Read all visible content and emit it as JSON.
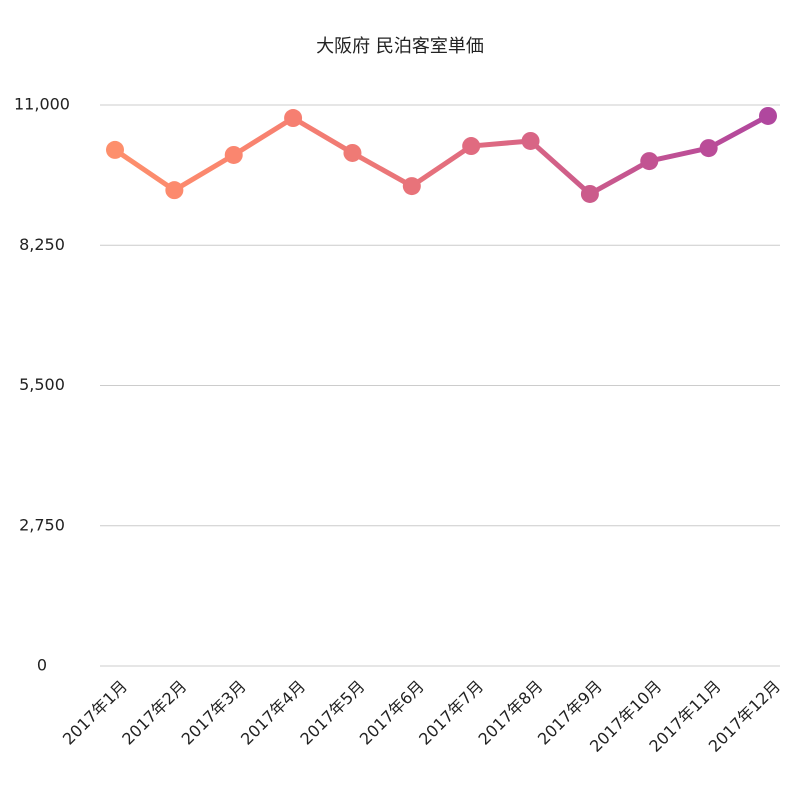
{
  "chart_data": {
    "type": "line",
    "title": "大阪府 民泊客室単価",
    "categories": [
      "2017年1月",
      "2017年2月",
      "2017年3月",
      "2017年4月",
      "2017年5月",
      "2017年6月",
      "2017年7月",
      "2017年8月",
      "2017年9月",
      "2017年10月",
      "2017年11月",
      "2017年12月"
    ],
    "values": [
      10120,
      9330,
      10020,
      10745,
      10060,
      9410,
      10195,
      10295,
      9255,
      9900,
      10155,
      10785
    ],
    "point_colors": [
      "#fd8f6c",
      "#fc8a6d",
      "#fa866f",
      "#f67f71",
      "#ef7a75",
      "#e8737a",
      "#e06b80",
      "#d86585",
      "#cb5b8b",
      "#c25392",
      "#ba4c98",
      "#b0479e"
    ],
    "ylim": [
      0,
      11000
    ],
    "yticks": [
      0,
      {
        "value": 2750,
        "label": "2,750"
      },
      {
        "value": 5500,
        "label": "5,500"
      },
      {
        "value": 8250,
        "label": "8,250"
      },
      {
        "value": 11000,
        "label": "11,000"
      }
    ],
    "grid": true
  }
}
